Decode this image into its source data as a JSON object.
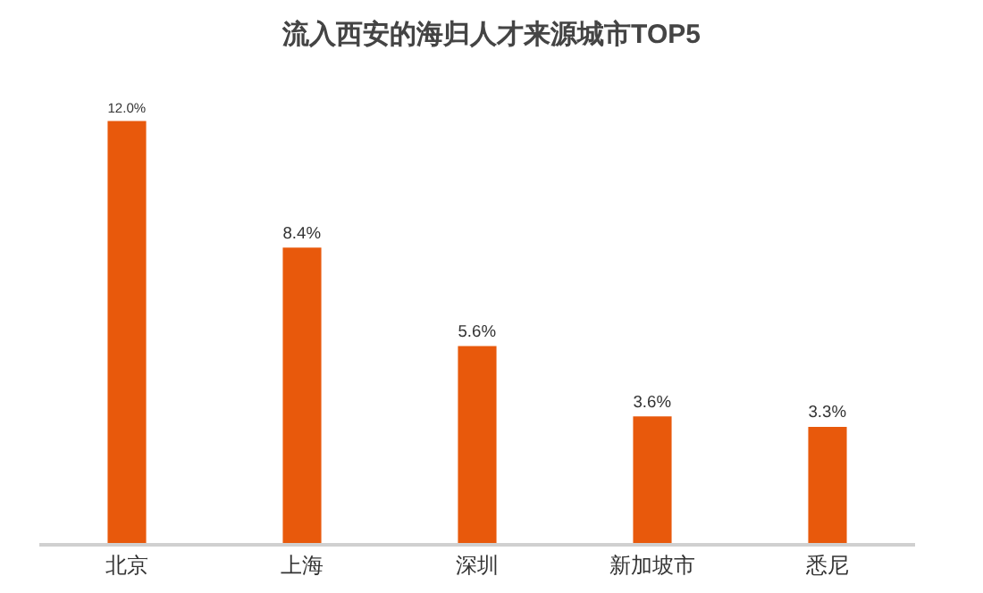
{
  "chart_data": {
    "type": "bar",
    "title": "流入西安的海归人才来源城市TOP5",
    "categories": [
      "北京",
      "上海",
      "深圳",
      "新加坡市",
      "悉尼"
    ],
    "values": [
      12.0,
      8.4,
      5.6,
      3.6,
      3.3
    ],
    "value_labels": [
      "12.0%",
      "8.4%",
      "5.6%",
      "3.6%",
      "3.3%"
    ],
    "color": "#e8590c",
    "grid": false,
    "legend": false,
    "tick_labels": "x"
  }
}
